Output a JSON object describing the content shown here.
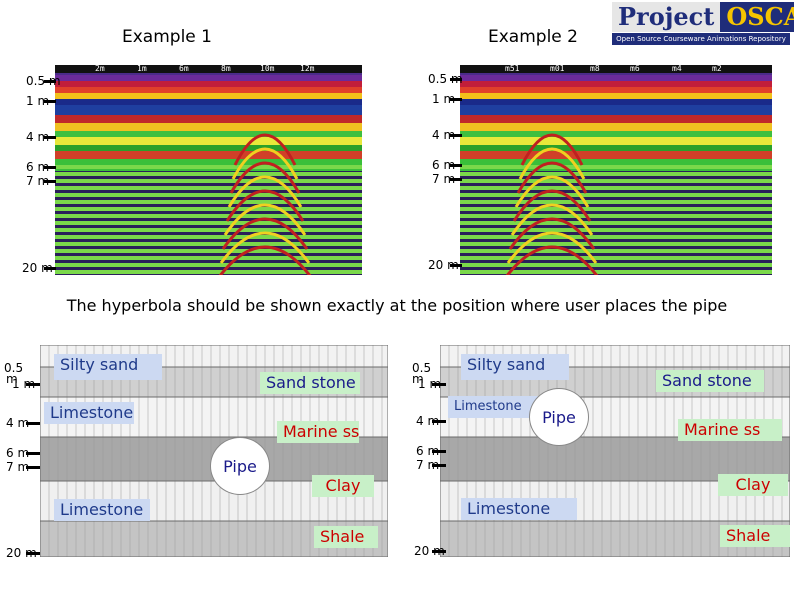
{
  "examples": {
    "ex1_title": "Example 1",
    "ex2_title": "Example 2"
  },
  "logo": {
    "word1": "Project",
    "word2": "OSCAR",
    "subtitle": "Open Source Courseware Animations Repository"
  },
  "radar": {
    "scale_labels": [
      "2m",
      "1m",
      "6m",
      "8m",
      "10m",
      "12m"
    ],
    "scale_labels_2": [
      "m51",
      "m01",
      "m8",
      "m6",
      "m4",
      "m2"
    ],
    "depth_labels": [
      "0.5 m",
      "1 m",
      "4 m",
      "6 m",
      "7 m",
      "20 m"
    ]
  },
  "caption": "The hyperbola should be shown exactly at the position where user places the pipe",
  "strata": {
    "depth_labels": [
      "0.5",
      "m",
      "1 m",
      "4 m",
      "6 m",
      "7 m",
      "20 m"
    ],
    "layers": {
      "silty_sand": "Silty sand",
      "sand_stone": "Sand stone",
      "limestone": "Limestone",
      "marine_ss": "Marine ss",
      "clay": "Clay",
      "shale": "Shale",
      "pipe": "Pipe"
    }
  },
  "colors": {
    "label_blue_bg": "#ccd9f2",
    "label_green_bg": "#c8f0c8",
    "label_red_text": "#cc0000",
    "logo_navy": "#1f2d7a",
    "logo_yellow": "#f5c400"
  }
}
